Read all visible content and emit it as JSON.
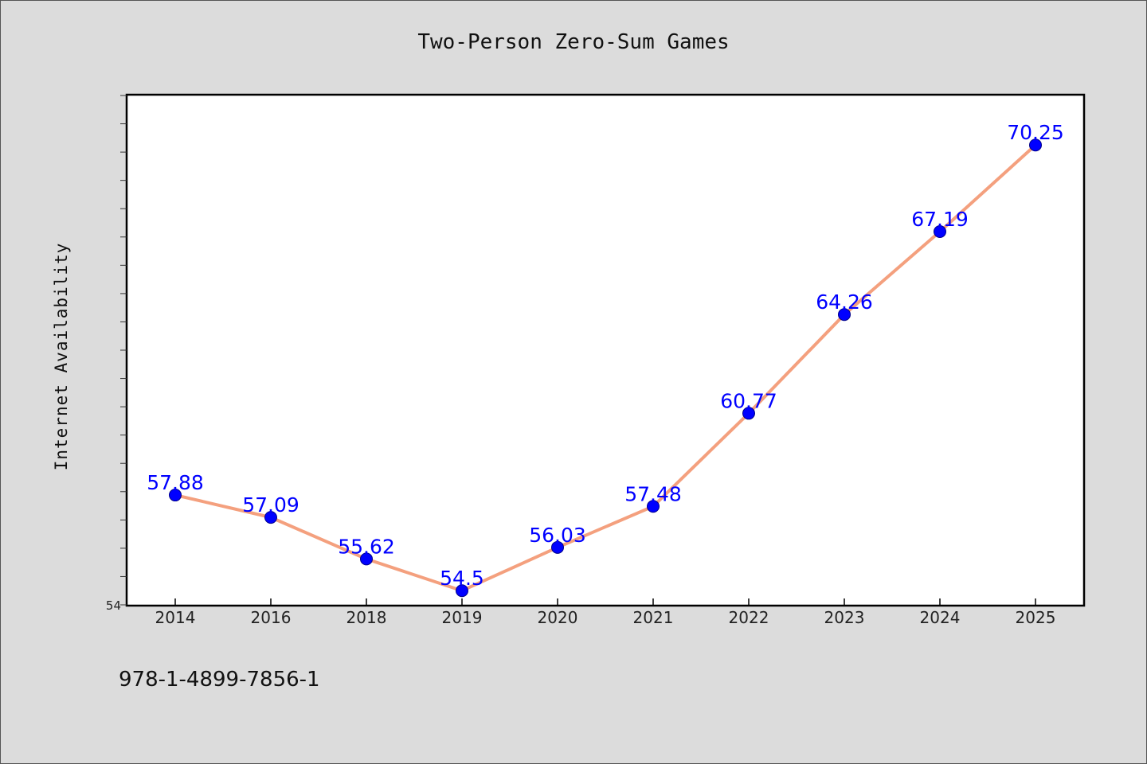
{
  "chart_data": {
    "type": "line",
    "title": "Two-Person Zero-Sum Games",
    "xlabel": "",
    "ylabel": "Internet Availability",
    "categories": [
      "2014",
      "2016",
      "2018",
      "2019",
      "2020",
      "2021",
      "2022",
      "2023",
      "2024",
      "2025"
    ],
    "series": [
      {
        "values": [
          57.88,
          57.09,
          55.62,
          54.5,
          56.03,
          57.48,
          60.77,
          64.26,
          67.19,
          70.25
        ],
        "data_labels": [
          "57.88",
          "57.09",
          "55.62",
          "54.5",
          "56.03",
          "57.48",
          "60.77",
          "64.26",
          "67.19",
          "70.25"
        ]
      }
    ],
    "ylim": [
      54,
      72
    ],
    "ytick_labels": [
      "54"
    ],
    "grid": false,
    "legend": "none",
    "colors": {
      "line": "#f4a07e",
      "marker": "#0000ff",
      "data_label": "#0000ff"
    }
  },
  "footer": {
    "isbn": "978-1-4899-7856-1"
  }
}
